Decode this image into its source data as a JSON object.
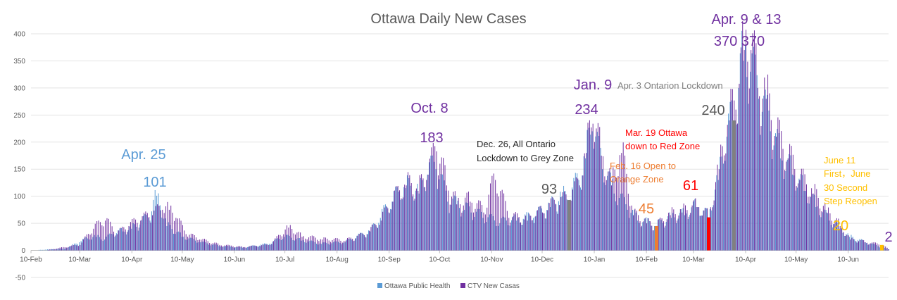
{
  "chart_data": {
    "type": "bar",
    "title": "Ottawa Daily New Cases",
    "xlabel": "",
    "ylabel": "",
    "ylim": [
      -50,
      400
    ],
    "yticks": [
      -50,
      0,
      50,
      100,
      150,
      200,
      250,
      300,
      350,
      400
    ],
    "grid": true,
    "legend_position": "bottom",
    "x_range": [
      "2020-02-10",
      "2021-07-04"
    ],
    "xticks": [
      {
        "label": "10-Feb",
        "date": "2020-02-10"
      },
      {
        "label": "10-Mar",
        "date": "2020-03-10"
      },
      {
        "label": "10-Apr",
        "date": "2020-04-10"
      },
      {
        "label": "10-May",
        "date": "2020-05-10"
      },
      {
        "label": "10-Jun",
        "date": "2020-06-10"
      },
      {
        "label": "10-Jul",
        "date": "2020-07-10"
      },
      {
        "label": "10-Aug",
        "date": "2020-08-10"
      },
      {
        "label": "10-Sep",
        "date": "2020-09-10"
      },
      {
        "label": "10-Oct",
        "date": "2020-10-10"
      },
      {
        "label": "10-Nov",
        "date": "2020-11-10"
      },
      {
        "label": "10-Dec",
        "date": "2020-12-10"
      },
      {
        "label": "10-Jan",
        "date": "2021-01-10"
      },
      {
        "label": "10-Feb",
        "date": "2021-02-10"
      },
      {
        "label": "10-Mar",
        "date": "2021-03-10"
      },
      {
        "label": "10-Apr",
        "date": "2021-04-10"
      },
      {
        "label": "10-May",
        "date": "2021-05-10"
      },
      {
        "label": "10-Jun",
        "date": "2021-06-10"
      }
    ],
    "series": [
      {
        "name": "Ottawa Public Health",
        "color": "#5b9bd5",
        "points": [
          {
            "date": "2020-02-15",
            "value": 1
          },
          {
            "date": "2020-03-01",
            "value": 3
          },
          {
            "date": "2020-03-05",
            "value": 8
          },
          {
            "date": "2020-03-10",
            "value": 15
          },
          {
            "date": "2020-03-15",
            "value": 22
          },
          {
            "date": "2020-03-20",
            "value": 25
          },
          {
            "date": "2020-03-25",
            "value": 20
          },
          {
            "date": "2020-03-30",
            "value": 30
          },
          {
            "date": "2020-04-05",
            "value": 35
          },
          {
            "date": "2020-04-10",
            "value": 40
          },
          {
            "date": "2020-04-15",
            "value": 48
          },
          {
            "date": "2020-04-20",
            "value": 60
          },
          {
            "date": "2020-04-25",
            "value": 101
          },
          {
            "date": "2020-05-01",
            "value": 45
          },
          {
            "date": "2020-05-10",
            "value": 25
          },
          {
            "date": "2020-05-20",
            "value": 15
          },
          {
            "date": "2020-06-01",
            "value": 8
          },
          {
            "date": "2020-06-15",
            "value": 5
          },
          {
            "date": "2020-07-01",
            "value": 12
          },
          {
            "date": "2020-07-10",
            "value": 25
          },
          {
            "date": "2020-07-20",
            "value": 18
          },
          {
            "date": "2020-08-01",
            "value": 12
          },
          {
            "date": "2020-08-15",
            "value": 15
          },
          {
            "date": "2020-08-30",
            "value": 35
          },
          {
            "date": "2020-09-05",
            "value": 60
          },
          {
            "date": "2020-09-12",
            "value": 90
          },
          {
            "date": "2020-09-20",
            "value": 115
          },
          {
            "date": "2020-09-28",
            "value": 105
          },
          {
            "date": "2020-10-03",
            "value": 140
          },
          {
            "date": "2020-10-08",
            "value": 150
          },
          {
            "date": "2020-10-15",
            "value": 90
          },
          {
            "date": "2020-10-25",
            "value": 75
          },
          {
            "date": "2020-11-05",
            "value": 60
          },
          {
            "date": "2020-11-15",
            "value": 50
          },
          {
            "date": "2020-11-25",
            "value": 55
          },
          {
            "date": "2020-12-05",
            "value": 60
          },
          {
            "date": "2020-12-15",
            "value": 80
          },
          {
            "date": "2020-12-22",
            "value": 100
          },
          {
            "date": "2020-12-26",
            "value": 93
          },
          {
            "date": "2021-01-01",
            "value": 130
          },
          {
            "date": "2021-01-05",
            "value": 170
          },
          {
            "date": "2021-01-09",
            "value": 220
          },
          {
            "date": "2021-01-15",
            "value": 150
          },
          {
            "date": "2021-01-22",
            "value": 105
          },
          {
            "date": "2021-01-30",
            "value": 75
          },
          {
            "date": "2021-02-05",
            "value": 55
          },
          {
            "date": "2021-02-16",
            "value": 45
          },
          {
            "date": "2021-02-25",
            "value": 60
          },
          {
            "date": "2021-03-05",
            "value": 65
          },
          {
            "date": "2021-03-12",
            "value": 80
          },
          {
            "date": "2021-03-19",
            "value": 61
          },
          {
            "date": "2021-03-25",
            "value": 130
          },
          {
            "date": "2021-03-30",
            "value": 210
          },
          {
            "date": "2021-04-03",
            "value": 240
          },
          {
            "date": "2021-04-06",
            "value": 300
          },
          {
            "date": "2021-04-09",
            "value": 350
          },
          {
            "date": "2021-04-13",
            "value": 330
          },
          {
            "date": "2021-04-18",
            "value": 280
          },
          {
            "date": "2021-04-25",
            "value": 220
          },
          {
            "date": "2021-05-01",
            "value": 170
          },
          {
            "date": "2021-05-08",
            "value": 140
          },
          {
            "date": "2021-05-15",
            "value": 110
          },
          {
            "date": "2021-05-22",
            "value": 80
          },
          {
            "date": "2021-05-30",
            "value": 55
          },
          {
            "date": "2021-06-05",
            "value": 40
          },
          {
            "date": "2021-06-11",
            "value": 25
          },
          {
            "date": "2021-06-20",
            "value": 15
          },
          {
            "date": "2021-06-30",
            "value": 6
          },
          {
            "date": "2021-07-04",
            "value": 2
          }
        ]
      },
      {
        "name": "CTV New Casas",
        "color": "#7030a0",
        "points": [
          {
            "date": "2020-02-20",
            "value": 1
          },
          {
            "date": "2020-03-10",
            "value": 10
          },
          {
            "date": "2020-03-18",
            "value": 40
          },
          {
            "date": "2020-03-25",
            "value": 55
          },
          {
            "date": "2020-04-01",
            "value": 30
          },
          {
            "date": "2020-04-08",
            "value": 45
          },
          {
            "date": "2020-04-15",
            "value": 55
          },
          {
            "date": "2020-04-22",
            "value": 65
          },
          {
            "date": "2020-04-28",
            "value": 75
          },
          {
            "date": "2020-05-02",
            "value": 75
          },
          {
            "date": "2020-05-06",
            "value": 60
          },
          {
            "date": "2020-05-12",
            "value": 30
          },
          {
            "date": "2020-05-20",
            "value": 20
          },
          {
            "date": "2020-06-01",
            "value": 10
          },
          {
            "date": "2020-06-15",
            "value": 6
          },
          {
            "date": "2020-07-01",
            "value": 10
          },
          {
            "date": "2020-07-12",
            "value": 42
          },
          {
            "date": "2020-07-20",
            "value": 25
          },
          {
            "date": "2020-08-01",
            "value": 20
          },
          {
            "date": "2020-08-15",
            "value": 18
          },
          {
            "date": "2020-08-28",
            "value": 30
          },
          {
            "date": "2020-09-05",
            "value": 55
          },
          {
            "date": "2020-09-12",
            "value": 90
          },
          {
            "date": "2020-09-20",
            "value": 120
          },
          {
            "date": "2020-09-27",
            "value": 110
          },
          {
            "date": "2020-10-02",
            "value": 130
          },
          {
            "date": "2020-10-08",
            "value": 183
          },
          {
            "date": "2020-10-14",
            "value": 120
          },
          {
            "date": "2020-10-20",
            "value": 85
          },
          {
            "date": "2020-10-28",
            "value": 90
          },
          {
            "date": "2020-11-05",
            "value": 70
          },
          {
            "date": "2020-11-12",
            "value": 130
          },
          {
            "date": "2020-11-20",
            "value": 60
          },
          {
            "date": "2020-12-01",
            "value": 55
          },
          {
            "date": "2020-12-10",
            "value": 70
          },
          {
            "date": "2020-12-18",
            "value": 85
          },
          {
            "date": "2020-12-26",
            "value": 93
          },
          {
            "date": "2021-01-01",
            "value": 120
          },
          {
            "date": "2021-01-05",
            "value": 180
          },
          {
            "date": "2021-01-09",
            "value": 234
          },
          {
            "date": "2021-01-14",
            "value": 175
          },
          {
            "date": "2021-01-20",
            "value": 120
          },
          {
            "date": "2021-01-26",
            "value": 180
          },
          {
            "date": "2021-02-02",
            "value": 65
          },
          {
            "date": "2021-02-10",
            "value": 50
          },
          {
            "date": "2021-02-16",
            "value": 45
          },
          {
            "date": "2021-02-24",
            "value": 65
          },
          {
            "date": "2021-03-03",
            "value": 70
          },
          {
            "date": "2021-03-12",
            "value": 80
          },
          {
            "date": "2021-03-19",
            "value": 61
          },
          {
            "date": "2021-03-25",
            "value": 150
          },
          {
            "date": "2021-03-31",
            "value": 240
          },
          {
            "date": "2021-04-04",
            "value": 260
          },
          {
            "date": "2021-04-09",
            "value": 370
          },
          {
            "date": "2021-04-13",
            "value": 370
          },
          {
            "date": "2021-04-17",
            "value": 300
          },
          {
            "date": "2021-04-22",
            "value": 280
          },
          {
            "date": "2021-04-28",
            "value": 210
          },
          {
            "date": "2021-05-05",
            "value": 170
          },
          {
            "date": "2021-05-12",
            "value": 130
          },
          {
            "date": "2021-05-20",
            "value": 105
          },
          {
            "date": "2021-05-28",
            "value": 70
          },
          {
            "date": "2021-06-05",
            "value": 45
          },
          {
            "date": "2021-06-11",
            "value": 20
          },
          {
            "date": "2021-06-20",
            "value": 15
          },
          {
            "date": "2021-06-30",
            "value": 10
          },
          {
            "date": "2021-07-04",
            "value": 2
          }
        ]
      }
    ],
    "markers": [
      {
        "date": "2020-12-26",
        "value": 93,
        "color": "#808080"
      },
      {
        "date": "2021-02-16",
        "value": 45,
        "color": "#ed7d31"
      },
      {
        "date": "2021-03-19",
        "value": 61,
        "color": "#ff0000"
      },
      {
        "date": "2021-04-03",
        "value": 240,
        "color": "#808080"
      },
      {
        "date": "2021-06-30",
        "value": 10,
        "color": "#ffc000"
      }
    ],
    "annotations": [
      {
        "id": "apr25-title",
        "text": "Apr. 25",
        "color": "#5b9bd5",
        "size": 20
      },
      {
        "id": "apr25-value",
        "text": "101",
        "color": "#5b9bd5",
        "size": 20
      },
      {
        "id": "oct8-title",
        "text": "Oct. 8",
        "color": "#7030a0",
        "size": 20
      },
      {
        "id": "oct8-value",
        "text": "183",
        "color": "#7030a0",
        "size": 20
      },
      {
        "id": "dec26-note-1",
        "text": "Dec. 26, All Ontario",
        "color": "#262626",
        "size": 13
      },
      {
        "id": "dec26-note-2",
        "text": "Lockdown to Grey Zone",
        "color": "#262626",
        "size": 13
      },
      {
        "id": "dec26-value",
        "text": "93",
        "color": "#595959",
        "size": 20
      },
      {
        "id": "jan9-title",
        "text": "Jan. 9",
        "color": "#7030a0",
        "size": 20
      },
      {
        "id": "apr3-note",
        "text": "Apr. 3 Ontarion Lockdown",
        "color": "#808080",
        "size": 13
      },
      {
        "id": "jan9-value",
        "text": "234",
        "color": "#7030a0",
        "size": 20
      },
      {
        "id": "feb16-note-1",
        "text": "Feb. 16 Open to",
        "color": "#ed7d31",
        "size": 13
      },
      {
        "id": "feb16-note-2",
        "text": "Orange Zone",
        "color": "#ed7d31",
        "size": 13
      },
      {
        "id": "feb16-value",
        "text": "45",
        "color": "#ed7d31",
        "size": 20
      },
      {
        "id": "mar19-note-1",
        "text": "Mar. 19 Ottawa",
        "color": "#ff0000",
        "size": 13
      },
      {
        "id": "mar19-note-2",
        "text": "down to Red Zone",
        "color": "#ff0000",
        "size": 13
      },
      {
        "id": "mar19-value",
        "text": "61",
        "color": "#ff0000",
        "size": 20
      },
      {
        "id": "apr3-value",
        "text": "240",
        "color": "#595959",
        "size": 20
      },
      {
        "id": "apr913-title",
        "text": "Apr. 9 & 13",
        "color": "#7030a0",
        "size": 20
      },
      {
        "id": "apr913-value",
        "text": "370 370",
        "color": "#7030a0",
        "size": 20
      },
      {
        "id": "june-note-1",
        "text": "June 11",
        "color": "#ffc000",
        "size": 13
      },
      {
        "id": "june-note-2",
        "text": "First，June",
        "color": "#ffc000",
        "size": 13
      },
      {
        "id": "june-note-3",
        "text": "30 Second",
        "color": "#ffc000",
        "size": 13
      },
      {
        "id": "june-note-4",
        "text": "Step Reopen",
        "color": "#ffc000",
        "size": 13
      },
      {
        "id": "june-value",
        "text": "20",
        "color": "#ffc000",
        "size": 20
      },
      {
        "id": "last-value",
        "text": "2",
        "color": "#7030a0",
        "size": 20
      }
    ]
  }
}
